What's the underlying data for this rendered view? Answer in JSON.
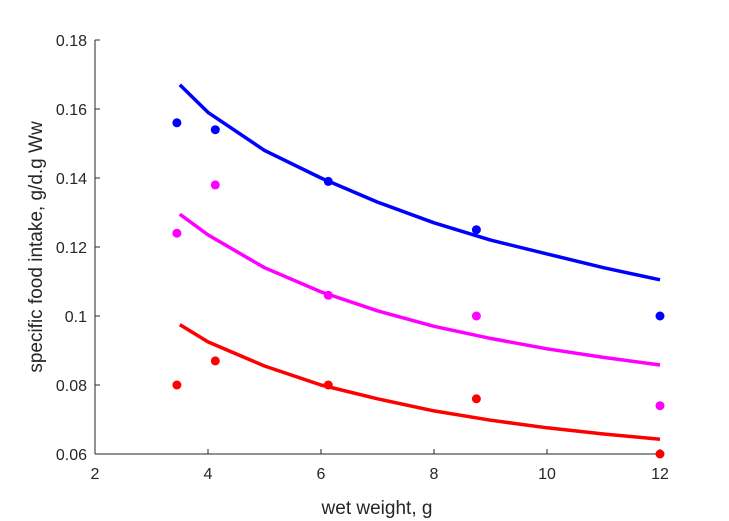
{
  "chart_data": {
    "type": "scatter",
    "xlabel": "wet weight, g",
    "ylabel": "specific food intake, g/d.g Ww",
    "xlim": [
      2,
      12
    ],
    "ylim": [
      0.06,
      0.18
    ],
    "xticks": [
      "2",
      "4",
      "6",
      "8",
      "10",
      "12"
    ],
    "yticks": [
      "0.06",
      "0.08",
      "0.1",
      "0.12",
      "0.14",
      "0.16",
      "0.18"
    ],
    "grid": false,
    "series": [
      {
        "color": "#0000ff",
        "points": [
          {
            "x": 3.45,
            "y": 0.156
          },
          {
            "x": 4.13,
            "y": 0.154
          },
          {
            "x": 6.13,
            "y": 0.139
          },
          {
            "x": 8.75,
            "y": 0.125
          },
          {
            "x": 12.0,
            "y": 0.1
          }
        ],
        "curve": [
          {
            "x": 3.5,
            "y": 0.167
          },
          {
            "x": 4.0,
            "y": 0.159
          },
          {
            "x": 5.0,
            "y": 0.148
          },
          {
            "x": 6.0,
            "y": 0.14
          },
          {
            "x": 7.0,
            "y": 0.133
          },
          {
            "x": 8.0,
            "y": 0.127
          },
          {
            "x": 9.0,
            "y": 0.122
          },
          {
            "x": 10.0,
            "y": 0.118
          },
          {
            "x": 11.0,
            "y": 0.114
          },
          {
            "x": 12.0,
            "y": 0.1105
          }
        ]
      },
      {
        "color": "#ff00ff",
        "points": [
          {
            "x": 3.45,
            "y": 0.124
          },
          {
            "x": 4.13,
            "y": 0.138
          },
          {
            "x": 6.13,
            "y": 0.106
          },
          {
            "x": 8.75,
            "y": 0.1
          },
          {
            "x": 12.0,
            "y": 0.074
          }
        ],
        "curve": [
          {
            "x": 3.5,
            "y": 0.1295
          },
          {
            "x": 4.0,
            "y": 0.1235
          },
          {
            "x": 5.0,
            "y": 0.114
          },
          {
            "x": 6.0,
            "y": 0.107
          },
          {
            "x": 7.0,
            "y": 0.1015
          },
          {
            "x": 8.0,
            "y": 0.097
          },
          {
            "x": 9.0,
            "y": 0.0935
          },
          {
            "x": 10.0,
            "y": 0.0905
          },
          {
            "x": 11.0,
            "y": 0.088
          },
          {
            "x": 12.0,
            "y": 0.0858
          }
        ]
      },
      {
        "color": "#ff0000",
        "points": [
          {
            "x": 3.45,
            "y": 0.08
          },
          {
            "x": 4.13,
            "y": 0.087
          },
          {
            "x": 6.13,
            "y": 0.08
          },
          {
            "x": 8.75,
            "y": 0.076
          },
          {
            "x": 12.0,
            "y": 0.06
          }
        ],
        "curve": [
          {
            "x": 3.5,
            "y": 0.0975
          },
          {
            "x": 4.0,
            "y": 0.0925
          },
          {
            "x": 5.0,
            "y": 0.0855
          },
          {
            "x": 6.0,
            "y": 0.08
          },
          {
            "x": 7.0,
            "y": 0.076
          },
          {
            "x": 8.0,
            "y": 0.0725
          },
          {
            "x": 9.0,
            "y": 0.0698
          },
          {
            "x": 10.0,
            "y": 0.0676
          },
          {
            "x": 11.0,
            "y": 0.0658
          },
          {
            "x": 12.0,
            "y": 0.0643
          }
        ]
      }
    ]
  }
}
